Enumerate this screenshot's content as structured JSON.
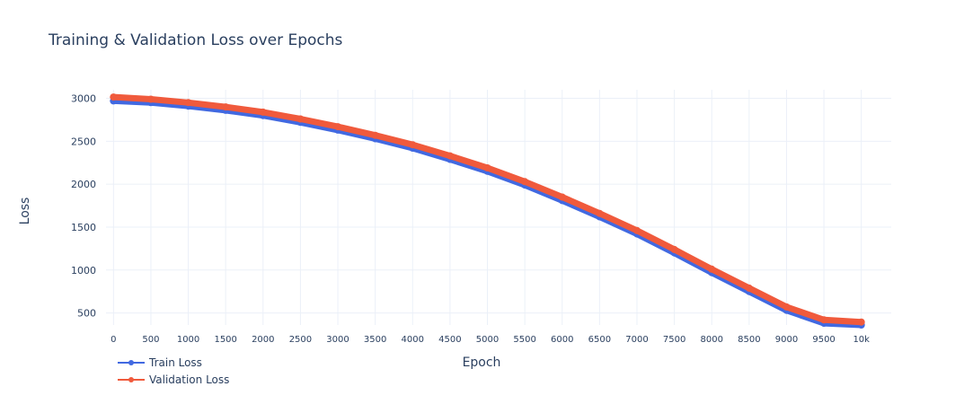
{
  "chart_data": {
    "type": "line",
    "title": "Training & Validation Loss over Epochs",
    "xlabel": "Epoch",
    "ylabel": "Loss",
    "xlim": [
      -100,
      10400
    ],
    "ylim": [
      360,
      3100
    ],
    "x_ticks": [
      0,
      500,
      1000,
      1500,
      2000,
      2500,
      3000,
      3500,
      4000,
      4500,
      5000,
      5500,
      6000,
      6500,
      7000,
      7500,
      8000,
      8500,
      9000,
      9500,
      10000
    ],
    "x_tick_labels": [
      "0",
      "500",
      "1000",
      "1500",
      "2000",
      "2500",
      "3000",
      "3500",
      "4000",
      "4500",
      "5000",
      "5500",
      "6000",
      "6500",
      "7000",
      "7500",
      "8000",
      "8500",
      "9000",
      "9500",
      "10k"
    ],
    "y_ticks": [
      500,
      1000,
      1500,
      2000,
      2500,
      3000
    ],
    "y_tick_labels": [
      "500",
      "1000",
      "1500",
      "2000",
      "2500",
      "3000"
    ],
    "grid": true,
    "legend_position": "bottom-left",
    "x": [
      0,
      500,
      1000,
      1500,
      2000,
      2500,
      3000,
      3500,
      4000,
      4500,
      5000,
      5500,
      6000,
      6500,
      7000,
      7500,
      8000,
      8500,
      9000,
      9500,
      10000
    ],
    "series": [
      {
        "name": "Train Loss",
        "color": "#4169e1",
        "values": [
          2970,
          2950,
          2910,
          2860,
          2800,
          2720,
          2630,
          2530,
          2420,
          2290,
          2150,
          1990,
          1810,
          1620,
          1420,
          1200,
          970,
          750,
          530,
          380,
          360
        ]
      },
      {
        "name": "Validation Loss",
        "color": "#f05a3c",
        "values": [
          3015,
          2990,
          2950,
          2900,
          2840,
          2760,
          2670,
          2570,
          2460,
          2330,
          2190,
          2030,
          1850,
          1660,
          1460,
          1240,
          1010,
          790,
          570,
          420,
          395
        ]
      }
    ]
  }
}
